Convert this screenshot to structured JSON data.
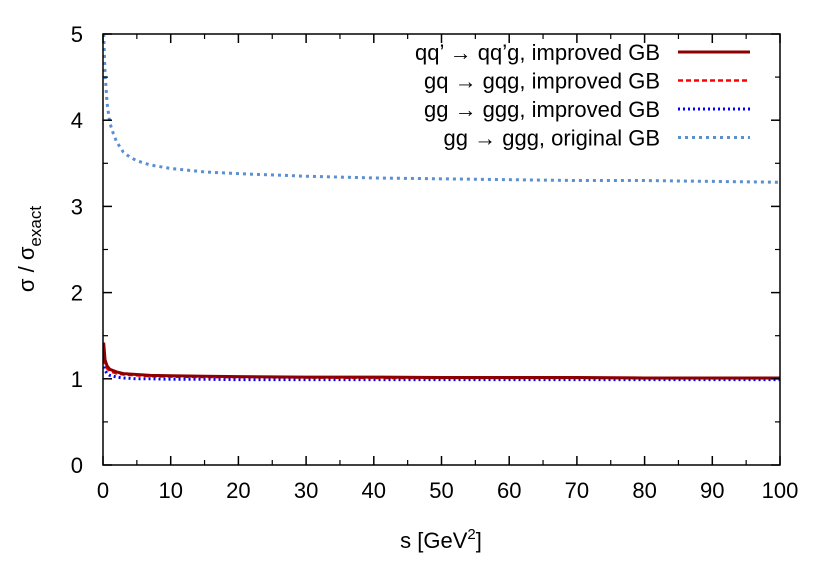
{
  "chart_data": {
    "type": "line",
    "xlabel": "s [GeV",
    "xlabel_sup": "2",
    "xlabel_suffix": "]",
    "ylabel": "σ / σ",
    "ylabel_sub": "exact",
    "xlim": [
      0,
      100
    ],
    "ylim": [
      0,
      5
    ],
    "x_ticks": [
      0,
      10,
      20,
      30,
      40,
      50,
      60,
      70,
      80,
      90,
      100
    ],
    "y_ticks": [
      0,
      1,
      2,
      3,
      4,
      5
    ],
    "grid": false,
    "legend_position": "top-right",
    "series": [
      {
        "name": "qq’ → qq’g, improved GB",
        "color": "#8b0000",
        "style": "solid",
        "x": [
          0.1,
          0.3,
          0.6,
          1,
          2,
          3,
          5,
          7,
          10,
          15,
          20,
          30,
          40,
          50,
          60,
          70,
          80,
          90,
          100
        ],
        "y": [
          1.42,
          1.22,
          1.15,
          1.11,
          1.08,
          1.06,
          1.05,
          1.04,
          1.035,
          1.03,
          1.025,
          1.02,
          1.02,
          1.015,
          1.015,
          1.015,
          1.01,
          1.01,
          1.01
        ]
      },
      {
        "name": "gq → gqg, improved GB",
        "color": "#ff0000",
        "style": "dashed",
        "x": [
          0.1,
          0.3,
          0.6,
          1,
          2,
          3,
          5,
          7,
          10,
          15,
          20,
          30,
          40,
          50,
          60,
          70,
          80,
          90,
          100
        ],
        "y": [
          1.32,
          1.18,
          1.12,
          1.09,
          1.06,
          1.05,
          1.04,
          1.03,
          1.025,
          1.02,
          1.02,
          1.015,
          1.01,
          1.01,
          1.01,
          1.01,
          1.005,
          1.005,
          1.005
        ]
      },
      {
        "name": "gg → ggg, improved GB",
        "color": "#0000ff",
        "style": "dotted",
        "x": [
          0.1,
          0.3,
          0.6,
          1,
          2,
          3,
          5,
          7,
          10,
          15,
          20,
          30,
          40,
          50,
          60,
          70,
          80,
          90,
          100
        ],
        "y": [
          1.2,
          1.1,
          1.06,
          1.04,
          1.02,
          1.01,
          1.0,
          1.0,
          0.995,
          0.995,
          0.99,
          0.99,
          0.99,
          0.99,
          0.99,
          0.99,
          0.99,
          0.99,
          0.99
        ]
      },
      {
        "name": "gg → ggg, original GB",
        "color": "#5a8fd0",
        "style": "dashdot",
        "x": [
          0.1,
          0.3,
          0.6,
          1,
          1.5,
          2,
          3,
          4,
          5,
          7,
          10,
          15,
          20,
          30,
          40,
          50,
          60,
          70,
          80,
          90,
          100
        ],
        "y": [
          5.0,
          4.55,
          4.2,
          3.97,
          3.85,
          3.75,
          3.63,
          3.57,
          3.53,
          3.48,
          3.44,
          3.4,
          3.38,
          3.35,
          3.33,
          3.32,
          3.31,
          3.3,
          3.3,
          3.29,
          3.28
        ]
      }
    ]
  }
}
